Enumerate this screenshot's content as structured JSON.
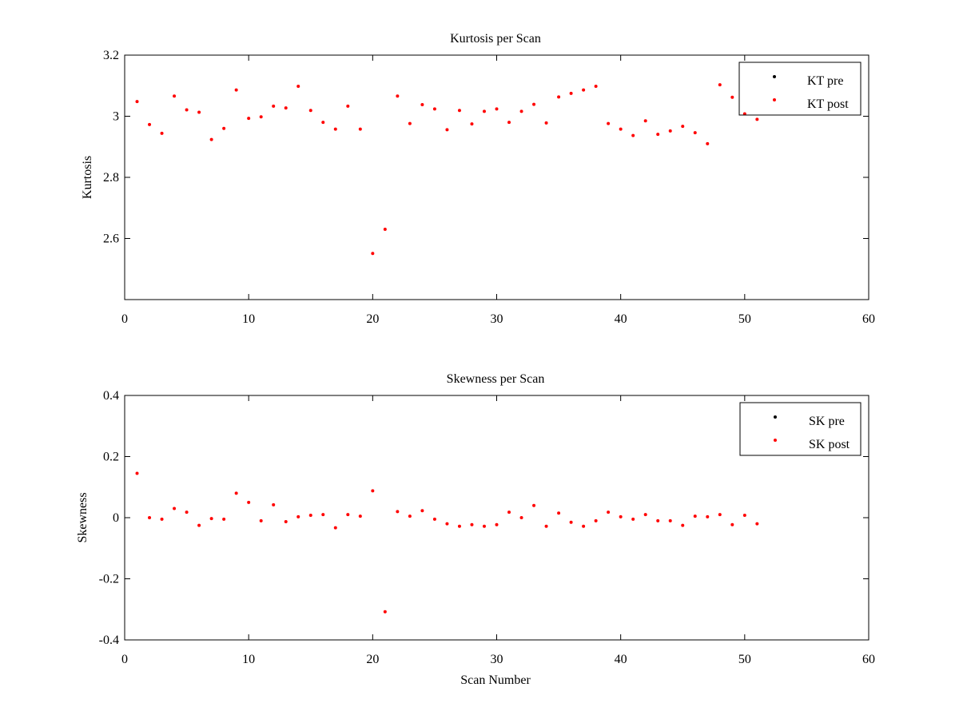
{
  "chart_data": [
    {
      "type": "scatter",
      "title": "Kurtosis per Scan",
      "xlabel": "",
      "ylabel": "Kurtosis",
      "xlim": [
        0,
        60
      ],
      "ylim": [
        2.4,
        3.2
      ],
      "xticks": [
        0,
        10,
        20,
        30,
        40,
        50,
        60
      ],
      "xtick_labels": [
        "0",
        "10",
        "20",
        "30",
        "40",
        "50",
        "60"
      ],
      "yticks": [
        2.6,
        2.8,
        3,
        3.2
      ],
      "ytick_labels": [
        "2.6",
        "2.8",
        "3",
        "3.2"
      ],
      "grid": false,
      "legend": "top-right",
      "series": [
        {
          "name": "KT pre",
          "color": "#000000",
          "x": [],
          "y": []
        },
        {
          "name": "KT post",
          "color": "#ff0000",
          "x": [
            1,
            2,
            3,
            4,
            5,
            6,
            7,
            8,
            9,
            10,
            11,
            12,
            13,
            14,
            15,
            16,
            17,
            18,
            19,
            20,
            21,
            22,
            23,
            24,
            25,
            26,
            27,
            28,
            29,
            30,
            31,
            32,
            33,
            34,
            35,
            36,
            37,
            38,
            39,
            40,
            41,
            42,
            43,
            44,
            45,
            46,
            47,
            48,
            49,
            50,
            51
          ],
          "y": [
            3.048,
            2.973,
            2.944,
            3.066,
            3.021,
            3.013,
            2.924,
            2.96,
            3.086,
            2.993,
            2.998,
            3.033,
            3.027,
            3.098,
            3.019,
            2.98,
            2.958,
            3.033,
            2.958,
            2.551,
            2.63,
            3.066,
            2.976,
            3.038,
            3.024,
            2.956,
            3.019,
            2.975,
            3.016,
            3.024,
            2.98,
            3.016,
            3.039,
            2.978,
            3.063,
            3.075,
            3.086,
            3.098,
            2.976,
            2.958,
            2.937,
            2.985,
            2.941,
            2.952,
            2.967,
            2.946,
            2.91,
            3.103,
            3.062,
            3.008,
            2.99
          ]
        }
      ]
    },
    {
      "type": "scatter",
      "title": "Skewness per Scan",
      "xlabel": "Scan Number",
      "ylabel": "Skewness",
      "xlim": [
        0,
        60
      ],
      "ylim": [
        -0.4,
        0.4
      ],
      "xticks": [
        0,
        10,
        20,
        30,
        40,
        50,
        60
      ],
      "xtick_labels": [
        "0",
        "10",
        "20",
        "30",
        "40",
        "50",
        "60"
      ],
      "yticks": [
        -0.4,
        -0.2,
        0,
        0.2,
        0.4
      ],
      "ytick_labels": [
        "-0.4",
        "-0.2",
        "0",
        "0.2",
        "0.4"
      ],
      "grid": false,
      "legend": "top-right",
      "series": [
        {
          "name": "SK pre",
          "color": "#000000",
          "x": [],
          "y": []
        },
        {
          "name": "SK post",
          "color": "#ff0000",
          "x": [
            1,
            2,
            3,
            4,
            5,
            6,
            7,
            8,
            9,
            10,
            11,
            12,
            13,
            14,
            15,
            16,
            17,
            18,
            19,
            20,
            21,
            22,
            23,
            24,
            25,
            26,
            27,
            28,
            29,
            30,
            31,
            32,
            33,
            34,
            35,
            36,
            37,
            38,
            39,
            40,
            41,
            42,
            43,
            44,
            45,
            46,
            47,
            48,
            49,
            50,
            51
          ],
          "y": [
            0.145,
            0.0,
            -0.005,
            0.03,
            0.018,
            -0.025,
            -0.003,
            -0.005,
            0.08,
            0.05,
            -0.01,
            0.042,
            -0.013,
            0.003,
            0.008,
            0.01,
            -0.033,
            0.01,
            0.005,
            0.088,
            -0.308,
            0.02,
            0.005,
            0.023,
            -0.005,
            -0.02,
            -0.028,
            -0.023,
            -0.028,
            -0.023,
            0.018,
            0.0,
            0.04,
            -0.028,
            0.015,
            -0.015,
            -0.028,
            -0.01,
            0.018,
            0.003,
            -0.005,
            0.01,
            -0.01,
            -0.01,
            -0.025,
            0.005,
            0.003,
            0.01,
            -0.023,
            0.008,
            -0.02
          ]
        }
      ]
    }
  ]
}
